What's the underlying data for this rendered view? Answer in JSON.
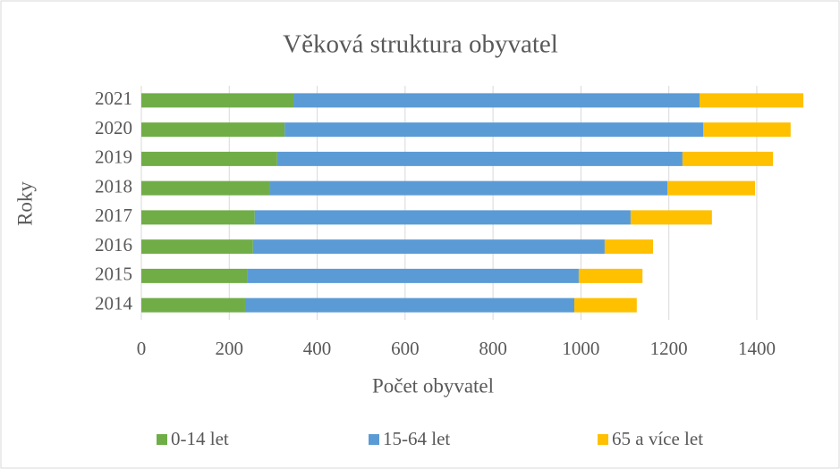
{
  "chart_data": {
    "type": "bar",
    "orientation": "horizontal",
    "stacked": true,
    "title": "Věková struktura obyvatel",
    "x_label": "Počet obyvatel",
    "y_label": "Roky",
    "categories": [
      "2014",
      "2015",
      "2016",
      "2017",
      "2018",
      "2019",
      "2020",
      "2021"
    ],
    "series": [
      {
        "name": "0-14 let",
        "color": "#70ad47",
        "values": [
          236,
          242,
          254,
          258,
          293,
          309,
          326,
          346
        ]
      },
      {
        "name": "15-64 let",
        "color": "#5b9bd5",
        "values": [
          749,
          753,
          800,
          855,
          904,
          922,
          952,
          924
        ]
      },
      {
        "name": "65 a více let",
        "color": "#ffc000",
        "values": [
          142,
          145,
          110,
          185,
          199,
          206,
          199,
          236
        ]
      }
    ],
    "xlim": [
      0,
      1500
    ],
    "xticks": [
      0,
      200,
      400,
      600,
      800,
      1000,
      1200,
      1400
    ],
    "grid": true,
    "legend": "bottom"
  }
}
